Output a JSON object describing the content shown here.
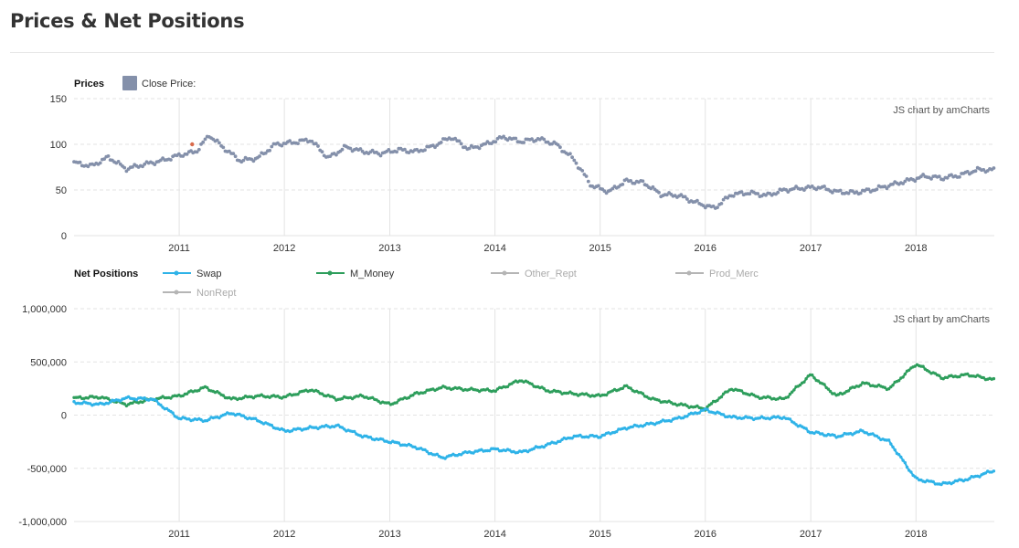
{
  "page": {
    "title": "Prices & Net Positions"
  },
  "colors": {
    "close_price": "#8490aa",
    "price_highlight": "#d96a4b",
    "swap": "#2fb3e8",
    "m_money": "#2e9e5c",
    "hidden_series": "#b5b5b5",
    "grid": "#e3e3e3",
    "axis": "#999999"
  },
  "chart_data": [
    {
      "type": "scatter",
      "legend_title": "Prices",
      "series": [
        {
          "name": "Close Price:",
          "color": "#8490aa",
          "visible": true,
          "x": [
            "2010-01-01",
            "2010-03-01",
            "2010-05-01",
            "2010-07-01",
            "2010-09-01",
            "2010-11-01",
            "2011-01-01",
            "2011-03-01",
            "2011-04-15",
            "2011-06-01",
            "2011-08-01",
            "2011-10-01",
            "2011-12-01",
            "2012-02-01",
            "2012-04-01",
            "2012-06-01",
            "2012-08-01",
            "2012-10-01",
            "2012-12-01",
            "2013-02-01",
            "2013-04-01",
            "2013-06-01",
            "2013-08-01",
            "2013-10-01",
            "2013-12-01",
            "2014-02-01",
            "2014-04-01",
            "2014-06-01",
            "2014-08-01",
            "2014-10-01",
            "2014-12-01",
            "2015-02-01",
            "2015-04-01",
            "2015-06-01",
            "2015-08-01",
            "2015-10-01",
            "2015-12-01",
            "2016-02-01",
            "2016-04-01",
            "2016-06-01",
            "2016-08-01",
            "2016-10-01",
            "2016-12-01",
            "2017-02-01",
            "2017-04-01",
            "2017-06-01",
            "2017-08-01",
            "2017-10-01",
            "2017-12-01",
            "2018-02-01",
            "2018-04-01",
            "2018-06-01",
            "2018-08-01",
            "2018-10-01"
          ],
          "values": [
            80,
            76,
            86,
            73,
            78,
            82,
            88,
            92,
            110,
            97,
            82,
            85,
            100,
            102,
            105,
            85,
            97,
            92,
            90,
            94,
            92,
            98,
            108,
            95,
            100,
            108,
            103,
            106,
            100,
            84,
            55,
            48,
            60,
            58,
            45,
            44,
            36,
            30,
            45,
            47,
            44,
            50,
            52,
            53,
            48,
            47,
            50,
            55,
            60,
            65,
            63,
            66,
            72,
            72
          ]
        }
      ],
      "highlight": {
        "x": "2011-02-15",
        "value": 100
      },
      "y_ticks": [
        "150",
        "100",
        "50",
        "0"
      ],
      "x_ticks": [
        "2011",
        "2012",
        "2013",
        "2014",
        "2015",
        "2016",
        "2017",
        "2018"
      ],
      "ylim": [
        0,
        150
      ],
      "xlim": [
        "2010-01-01",
        "2018-09-30"
      ],
      "credit": "JS chart by amCharts",
      "grid": true
    },
    {
      "type": "line",
      "legend_title": "Net Positions",
      "series": [
        {
          "name": "Swap",
          "color": "#2fb3e8",
          "visible": true,
          "x": [
            "2010-01-01",
            "2010-04-01",
            "2010-07-01",
            "2010-10-01",
            "2011-01-01",
            "2011-04-01",
            "2011-07-01",
            "2011-10-01",
            "2012-01-01",
            "2012-04-01",
            "2012-07-01",
            "2012-10-01",
            "2013-01-01",
            "2013-04-01",
            "2013-07-01",
            "2013-10-01",
            "2014-01-01",
            "2014-04-01",
            "2014-07-01",
            "2014-10-01",
            "2015-01-01",
            "2015-04-01",
            "2015-07-01",
            "2015-10-01",
            "2016-01-01",
            "2016-04-01",
            "2016-07-01",
            "2016-10-01",
            "2017-01-01",
            "2017-04-01",
            "2017-07-01",
            "2017-10-01",
            "2018-01-01",
            "2018-04-01",
            "2018-07-01",
            "2018-10-01"
          ],
          "values": [
            120,
            100,
            160,
            150,
            -30,
            -50,
            20,
            -50,
            -150,
            -120,
            -100,
            -200,
            -250,
            -300,
            -400,
            -350,
            -320,
            -350,
            -280,
            -200,
            -200,
            -120,
            -80,
            -30,
            50,
            -20,
            -30,
            -20,
            -160,
            -200,
            -150,
            -250,
            -600,
            -650,
            -600,
            -520
          ]
        },
        {
          "name": "M_Money",
          "color": "#2e9e5c",
          "visible": true,
          "x": [
            "2010-01-01",
            "2010-04-01",
            "2010-07-01",
            "2010-10-01",
            "2011-01-01",
            "2011-04-01",
            "2011-07-01",
            "2011-10-01",
            "2012-01-01",
            "2012-04-01",
            "2012-07-01",
            "2012-10-01",
            "2013-01-01",
            "2013-04-01",
            "2013-07-01",
            "2013-10-01",
            "2014-01-01",
            "2014-04-01",
            "2014-07-01",
            "2014-10-01",
            "2015-01-01",
            "2015-04-01",
            "2015-07-01",
            "2015-10-01",
            "2016-01-01",
            "2016-04-01",
            "2016-07-01",
            "2016-10-01",
            "2017-01-01",
            "2017-04-01",
            "2017-07-01",
            "2017-10-01",
            "2018-01-01",
            "2018-04-01",
            "2018-07-01",
            "2018-10-01"
          ],
          "values": [
            160,
            170,
            100,
            150,
            180,
            260,
            150,
            180,
            170,
            240,
            150,
            180,
            100,
            200,
            260,
            240,
            230,
            330,
            230,
            200,
            180,
            270,
            150,
            100,
            60,
            250,
            170,
            150,
            380,
            180,
            300,
            250,
            480,
            350,
            380,
            330
          ]
        },
        {
          "name": "Other_Rept",
          "color": "#b5b5b5",
          "visible": false
        },
        {
          "name": "Prod_Merc",
          "color": "#b5b5b5",
          "visible": false
        },
        {
          "name": "NonRept",
          "color": "#b5b5b5",
          "visible": false
        }
      ],
      "y_ticks": [
        "1,000,000",
        "500,000",
        "0",
        "-500,000",
        "-1,000,000"
      ],
      "x_ticks": [
        "2011",
        "2012",
        "2013",
        "2014",
        "2015",
        "2016",
        "2017",
        "2018"
      ],
      "ylim": [
        -1000000,
        1000000
      ],
      "value_scale": 1000,
      "xlim": [
        "2010-01-01",
        "2018-09-30"
      ],
      "credit": "JS chart by amCharts",
      "grid": true
    }
  ]
}
